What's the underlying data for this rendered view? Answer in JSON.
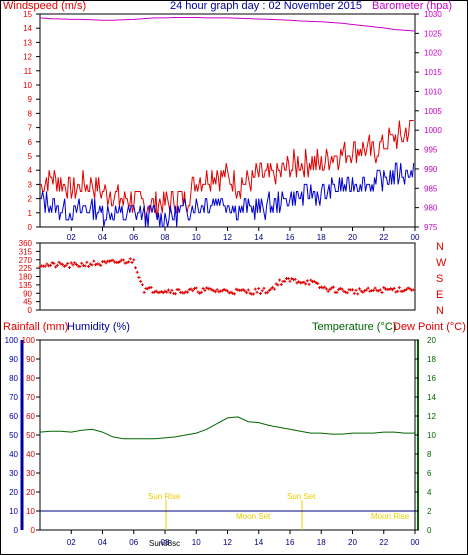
{
  "header": {
    "title": "24 hour graph day : 02 November 2015",
    "wind_label": "Windspeed (m/s)",
    "baro_label": "Barometer (hpa)"
  },
  "lower_header": {
    "rain_label": "Rainfall (mm)",
    "hum_label": "Humidity (%)",
    "temp_label": "Temperature (°C)",
    "dew_label": "Dew Point (°C)"
  },
  "dir_labels": [
    "N",
    "W",
    "S",
    "E",
    "N"
  ],
  "events": {
    "sunrise": "Sun Rise",
    "sunset": "Sun Set",
    "moonset": "Moon Set",
    "moonrise": "Moon Rise",
    "bottom_label": "Sun08sc"
  },
  "colors": {
    "wind_gust": "#e00000",
    "wind_avg": "#0000d0",
    "barometer": "#cc00cc",
    "direction": "#e00000",
    "humidity": "#000080",
    "temperature": "#006600",
    "events": "#e8d000"
  },
  "chart_data": [
    {
      "type": "line",
      "name": "wind-baro",
      "x_ticks": [
        "02",
        "04",
        "06",
        "08",
        "10",
        "12",
        "14",
        "16",
        "18",
        "20",
        "22",
        "00"
      ],
      "left_axis": {
        "ylim": [
          0,
          15
        ],
        "ticks": [
          0,
          1,
          2,
          3,
          4,
          5,
          6,
          7,
          8,
          9,
          10,
          11,
          12,
          13,
          14,
          15
        ]
      },
      "right_axis": {
        "ylim": [
          975,
          1030
        ],
        "ticks": [
          975,
          980,
          985,
          990,
          995,
          1000,
          1005,
          1010,
          1015,
          1020,
          1025,
          1030
        ]
      },
      "series": [
        {
          "key": "gust",
          "values": [
            3.0,
            3.5,
            3.2,
            2.6,
            3.0,
            3.1,
            2.5,
            2.3,
            1.8,
            2.0,
            1.5,
            1.6,
            1.6,
            1.9,
            2.0,
            3.2,
            3.6,
            3.8,
            3.5,
            3.0,
            3.2,
            3.6,
            3.4,
            3.8,
            4.2,
            4.5,
            4.6,
            4.4,
            5.0,
            5.3,
            5.5,
            5.6,
            5.3,
            5.8,
            6.2,
            6.5,
            7.5
          ]
        },
        {
          "key": "avg",
          "values": [
            1.8,
            1.6,
            1.2,
            1.0,
            1.2,
            1.3,
            1.0,
            1.0,
            0.9,
            1.0,
            0.8,
            0.9,
            0.7,
            1.0,
            1.1,
            1.5,
            1.7,
            2.0,
            1.7,
            1.2,
            1.3,
            1.4,
            1.5,
            1.8,
            2.0,
            2.2,
            2.4,
            2.2,
            2.6,
            2.8,
            3.0,
            3.2,
            3.0,
            3.4,
            3.6,
            3.8,
            4.0
          ]
        },
        {
          "key": "baro",
          "axis": "right",
          "values": [
            1029,
            1028.8,
            1028.7,
            1028.6,
            1028.6,
            1028.5,
            1028.4,
            1028.4,
            1028.5,
            1028.6,
            1028.8,
            1029,
            1029,
            1029.1,
            1029.1,
            1029.1,
            1029,
            1029,
            1029,
            1028.9,
            1028.8,
            1028.7,
            1028.6,
            1028.5,
            1028.4,
            1028.2,
            1028.1,
            1028.0,
            1027.8,
            1027.6,
            1027.3,
            1027.0,
            1026.7,
            1026.4,
            1026.0,
            1025.8,
            1025.6
          ]
        }
      ]
    },
    {
      "type": "scatter",
      "name": "wind-direction",
      "ylim": [
        0,
        360
      ],
      "y_ticks": [
        0,
        45,
        90,
        135,
        180,
        225,
        270,
        315,
        360
      ],
      "values": [
        245,
        240,
        242,
        238,
        244,
        250,
        248,
        255,
        262,
        265,
        110,
        108,
        105,
        102,
        100,
        104,
        106,
        104,
        102,
        100,
        98,
        102,
        104,
        150,
        160,
        155,
        150,
        120,
        110,
        105,
        100,
        102,
        104,
        108,
        110,
        112,
        115
      ]
    },
    {
      "type": "line",
      "name": "humidity-temp",
      "left_axis": {
        "ylim": [
          0,
          100
        ],
        "ticks": [
          0,
          10,
          20,
          30,
          40,
          50,
          60,
          70,
          80,
          90,
          100
        ]
      },
      "right_axis": {
        "ylim": [
          0,
          20
        ],
        "ticks": [
          0,
          2,
          4,
          6,
          8,
          10,
          12,
          14,
          16,
          18,
          20
        ]
      },
      "series": [
        {
          "key": "temperature",
          "axis": "right",
          "values": [
            10.3,
            10.4,
            10.4,
            10.3,
            10.5,
            10.6,
            10.3,
            9.8,
            9.6,
            9.6,
            9.6,
            9.6,
            9.7,
            9.8,
            10.0,
            10.2,
            10.6,
            11.2,
            11.8,
            11.9,
            11.4,
            11.3,
            11.0,
            10.8,
            10.6,
            10.4,
            10.2,
            10.2,
            10.1,
            10.1,
            10.2,
            10.2,
            10.2,
            10.3,
            10.3,
            10.2,
            10.2
          ]
        },
        {
          "key": "rainfall",
          "axis": "right",
          "values": [
            2,
            2,
            2,
            2,
            2,
            2,
            2,
            2,
            2,
            2,
            2,
            2,
            2,
            2,
            2,
            2,
            2,
            2,
            2,
            2,
            2,
            2,
            2,
            2,
            2,
            2,
            2,
            2,
            2,
            2,
            2,
            2,
            2,
            2,
            2,
            2,
            2
          ]
        }
      ]
    }
  ]
}
